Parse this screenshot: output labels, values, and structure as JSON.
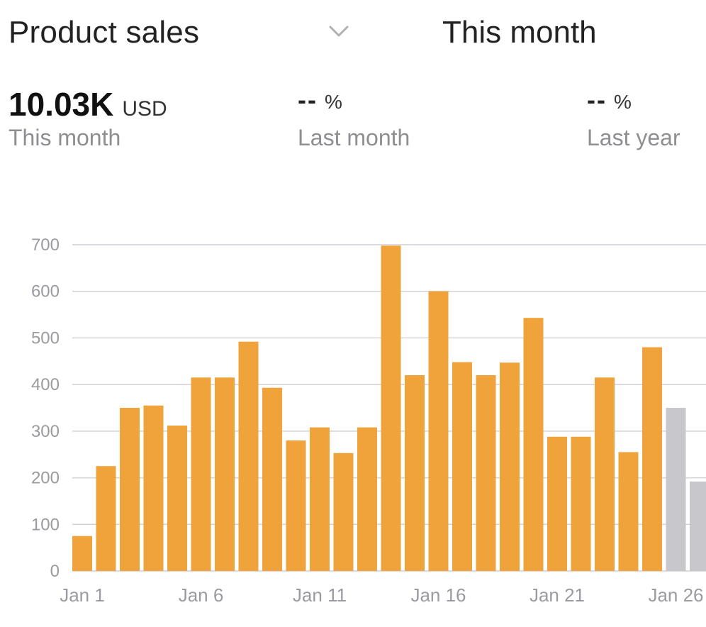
{
  "header": {
    "metric_label": "Product sales",
    "period_label": "This month"
  },
  "stats": {
    "current": {
      "value": "10.03K",
      "unit": "USD",
      "caption": "This month"
    },
    "last_month": {
      "value": "--",
      "unit": "%",
      "caption": "Last month"
    },
    "last_year": {
      "value": "--",
      "unit": "%",
      "caption": "Last year"
    }
  },
  "icons": {
    "dropdown": "chevron-down-icon"
  },
  "colors": {
    "bar_actual": "#F0A23B",
    "bar_forecast": "#C7C7CC",
    "grid": "#D1D1D6"
  },
  "chart_data": {
    "type": "bar",
    "title": "",
    "xlabel": "",
    "ylabel": "",
    "ylim": [
      0,
      700
    ],
    "yticks": [
      0,
      100,
      200,
      300,
      400,
      500,
      600,
      700
    ],
    "x_tick_labels": [
      "Jan 1",
      "Jan 6",
      "Jan 11",
      "Jan 16",
      "Jan 21",
      "Jan 26"
    ],
    "categories": [
      "Jan 1",
      "Jan 2",
      "Jan 3",
      "Jan 4",
      "Jan 5",
      "Jan 6",
      "Jan 7",
      "Jan 8",
      "Jan 9",
      "Jan 10",
      "Jan 11",
      "Jan 12",
      "Jan 13",
      "Jan 14",
      "Jan 15",
      "Jan 16",
      "Jan 17",
      "Jan 18",
      "Jan 19",
      "Jan 20",
      "Jan 21",
      "Jan 22",
      "Jan 23",
      "Jan 24",
      "Jan 25",
      "Jan 26",
      "Jan 27"
    ],
    "values": [
      75,
      225,
      350,
      355,
      312,
      415,
      415,
      492,
      393,
      280,
      308,
      253,
      308,
      698,
      420,
      600,
      448,
      420,
      447,
      543,
      288,
      288,
      415,
      255,
      480,
      350,
      192
    ],
    "forecast_start_index": 25,
    "grid": true
  }
}
